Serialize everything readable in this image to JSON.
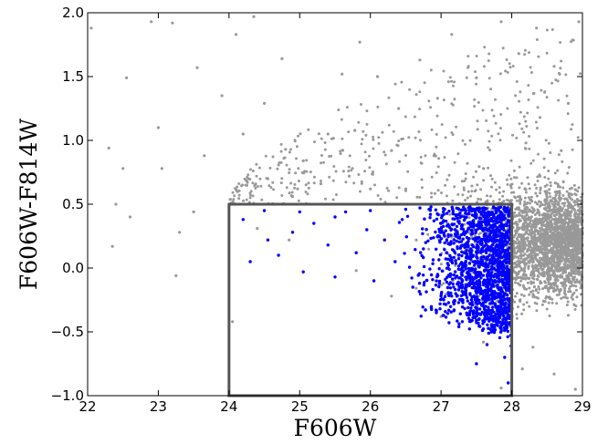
{
  "chart_data": {
    "type": "scatter",
    "title": "",
    "xlabel": "F606W",
    "ylabel": "F606W-F814W",
    "xlim": [
      22,
      29
    ],
    "ylim": [
      -1.0,
      2.0
    ],
    "x_ticks": [
      "22",
      "23",
      "24",
      "25",
      "26",
      "27",
      "28",
      "29"
    ],
    "y_ticks": [
      "−1.0",
      "−0.5",
      "0.0",
      "0.5",
      "1.0",
      "1.5",
      "2.0"
    ],
    "grid": false,
    "legend": "none",
    "selection_box": {
      "x": [
        24,
        28
      ],
      "y": [
        -1.0,
        0.5
      ],
      "color": "#555555"
    },
    "series": [
      {
        "color": "#999999",
        "marker": "dot",
        "description_points": [
          [
            22.05,
            1.88
          ],
          [
            22.55,
            1.49
          ],
          [
            22.3,
            0.94
          ],
          [
            22.5,
            0.78
          ],
          [
            22.6,
            0.4
          ],
          [
            22.35,
            0.17
          ],
          [
            22.4,
            0.5
          ],
          [
            22.9,
            1.93
          ],
          [
            23.2,
            1.92
          ],
          [
            23.55,
            1.57
          ],
          [
            23.0,
            1.1
          ],
          [
            23.05,
            0.78
          ],
          [
            23.3,
            0.28
          ],
          [
            23.5,
            0.44
          ],
          [
            23.25,
            -0.06
          ],
          [
            23.65,
            0.88
          ],
          [
            23.9,
            1.35
          ],
          [
            24.1,
            1.83
          ],
          [
            24.35,
            1.97
          ],
          [
            24.75,
            1.64
          ],
          [
            24.5,
            1.29
          ],
          [
            24.2,
            1.05
          ],
          [
            24.8,
            0.93
          ],
          [
            25.05,
            0.84
          ],
          [
            25.4,
            1.05
          ],
          [
            25.6,
            1.52
          ],
          [
            25.85,
            1.77
          ],
          [
            26.1,
            1.5
          ],
          [
            26.4,
            1.25
          ],
          [
            26.3,
            0.92
          ],
          [
            26.7,
            1.63
          ],
          [
            26.95,
            1.33
          ],
          [
            27.15,
            1.83
          ],
          [
            27.5,
            1.49
          ],
          [
            27.85,
            1.93
          ],
          [
            28.1,
            1.68
          ],
          [
            28.35,
            1.88
          ],
          [
            28.6,
            1.58
          ],
          [
            28.95,
            1.93
          ],
          [
            28.8,
            1.29
          ],
          [
            28.4,
            1.18
          ],
          [
            28.2,
            0.98
          ],
          [
            28.7,
            0.92
          ],
          [
            28.95,
            0.63
          ],
          [
            28.5,
            0.03
          ],
          [
            28.8,
            -0.37
          ],
          [
            28.3,
            -0.62
          ],
          [
            28.6,
            -0.83
          ],
          [
            28.9,
            -0.95
          ],
          [
            28.15,
            -0.79
          ],
          [
            28.45,
            -0.26
          ],
          [
            28.2,
            0.32
          ],
          [
            28.65,
            0.44
          ],
          [
            28.95,
            0.12
          ],
          [
            28.75,
            -0.16
          ],
          [
            28.4,
            0.72
          ],
          [
            27.6,
            0.78
          ],
          [
            27.3,
            0.68
          ],
          [
            26.9,
            0.88
          ],
          [
            26.5,
            0.62
          ],
          [
            26.0,
            0.62
          ],
          [
            25.7,
            0.72
          ],
          [
            25.3,
            0.66
          ],
          [
            24.9,
            0.56
          ],
          [
            24.55,
            0.7
          ],
          [
            25.8,
            -0.02
          ],
          [
            26.3,
            -0.22
          ],
          [
            27.0,
            -0.38
          ],
          [
            27.6,
            -0.58
          ],
          [
            27.85,
            -0.94
          ],
          [
            27.7,
            -0.25
          ],
          [
            27.2,
            0.02
          ],
          [
            26.65,
            0.22
          ],
          [
            27.85,
            0.4
          ],
          [
            28.05,
            -0.08
          ],
          [
            24.05,
            -0.42
          ],
          [
            24.4,
            0.31
          ],
          [
            24.85,
            0.22
          ]
        ]
      },
      {
        "color": "#0000ff",
        "marker": "dot",
        "description_points": [
          [
            24.3,
            0.05
          ],
          [
            24.55,
            0.22
          ],
          [
            24.7,
            0.1
          ],
          [
            24.9,
            0.28
          ],
          [
            25.05,
            -0.03
          ],
          [
            25.2,
            0.35
          ],
          [
            25.4,
            0.18
          ],
          [
            25.5,
            -0.07
          ],
          [
            25.65,
            0.44
          ],
          [
            25.8,
            0.12
          ],
          [
            25.95,
            0.3
          ],
          [
            26.05,
            -0.1
          ],
          [
            26.2,
            0.22
          ],
          [
            26.35,
            0.05
          ],
          [
            26.45,
            0.38
          ],
          [
            26.6,
            -0.15
          ],
          [
            26.75,
            0.15
          ],
          [
            26.85,
            0.42
          ],
          [
            26.95,
            -0.05
          ],
          [
            27.05,
            0.25
          ],
          [
            27.15,
            -0.22
          ],
          [
            27.25,
            0.1
          ],
          [
            27.35,
            0.45
          ],
          [
            27.45,
            -0.12
          ],
          [
            27.55,
            0.32
          ],
          [
            27.6,
            -0.3
          ],
          [
            27.7,
            0.05
          ],
          [
            27.75,
            0.4
          ],
          [
            27.8,
            -0.45
          ],
          [
            27.85,
            0.18
          ],
          [
            27.9,
            -0.15
          ],
          [
            27.95,
            0.28
          ],
          [
            27.5,
            0.42
          ],
          [
            27.0,
            0.35
          ],
          [
            26.5,
            0.46
          ],
          [
            26.0,
            0.45
          ],
          [
            25.5,
            0.4
          ],
          [
            25.0,
            0.44
          ],
          [
            24.5,
            0.45
          ],
          [
            24.2,
            0.38
          ],
          [
            27.3,
            -0.42
          ],
          [
            27.65,
            -0.6
          ],
          [
            27.9,
            -0.7
          ],
          [
            27.95,
            -0.9
          ],
          [
            27.5,
            -0.75
          ]
        ]
      }
    ]
  }
}
